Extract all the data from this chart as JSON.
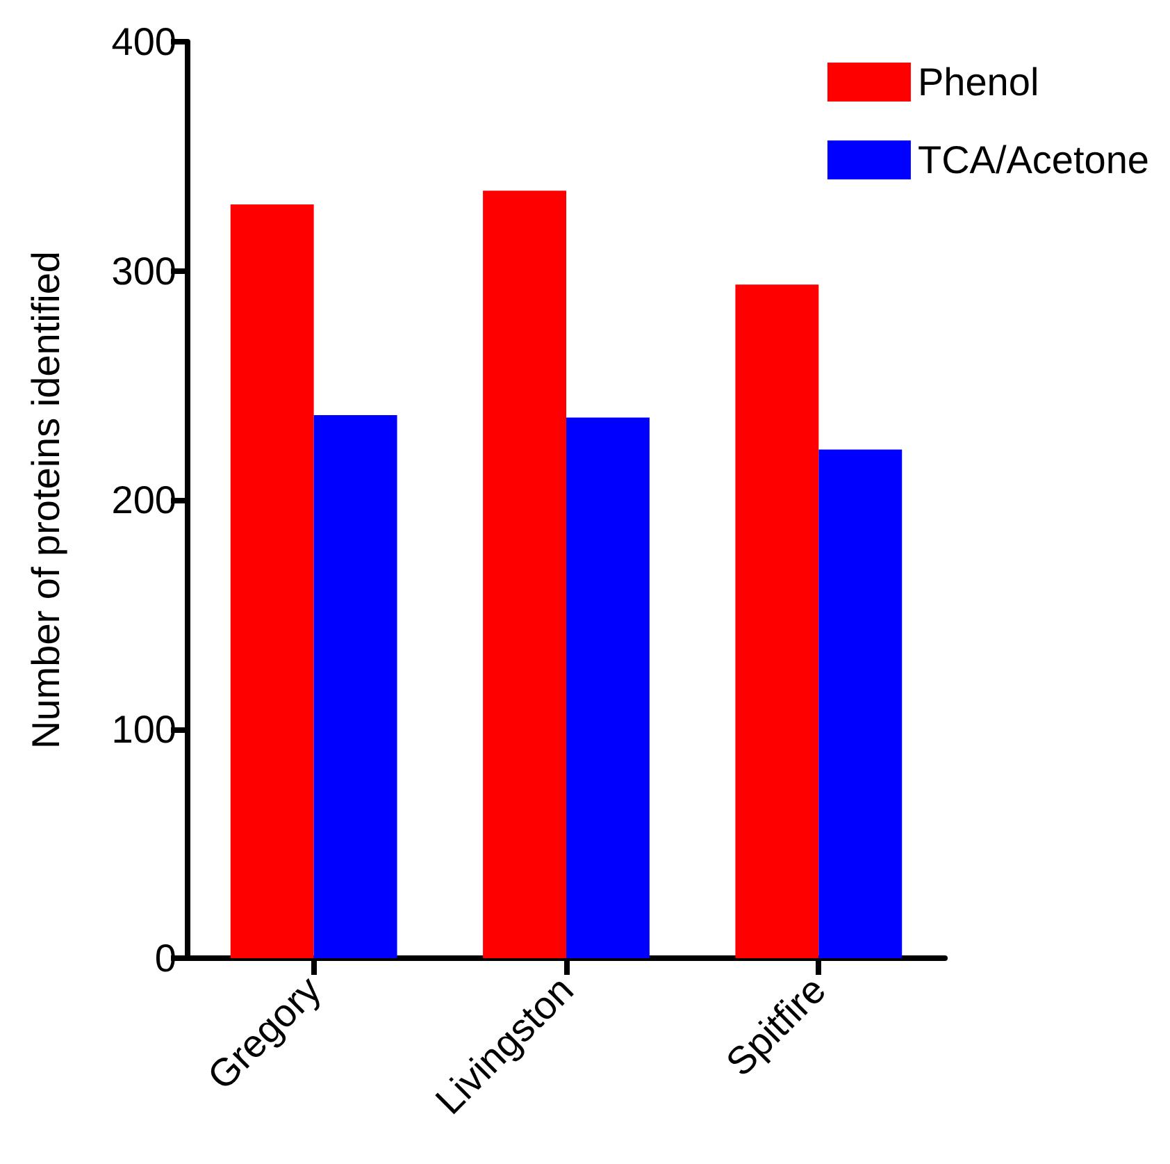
{
  "chart_data": {
    "type": "bar",
    "ylabel": "Number of proteins identified",
    "categories": [
      "Gregory",
      "Livingston",
      "Spitfire"
    ],
    "series": [
      {
        "name": "Phenol",
        "color": "#ff0000",
        "values": [
          329,
          335,
          294
        ]
      },
      {
        "name": "TCA/Acetone",
        "color": "#0000ff",
        "values": [
          237,
          236,
          222
        ]
      }
    ],
    "ylim": [
      0,
      400
    ],
    "yticks": [
      0,
      100,
      200,
      300,
      400
    ],
    "grid": false,
    "legend": "top right"
  }
}
